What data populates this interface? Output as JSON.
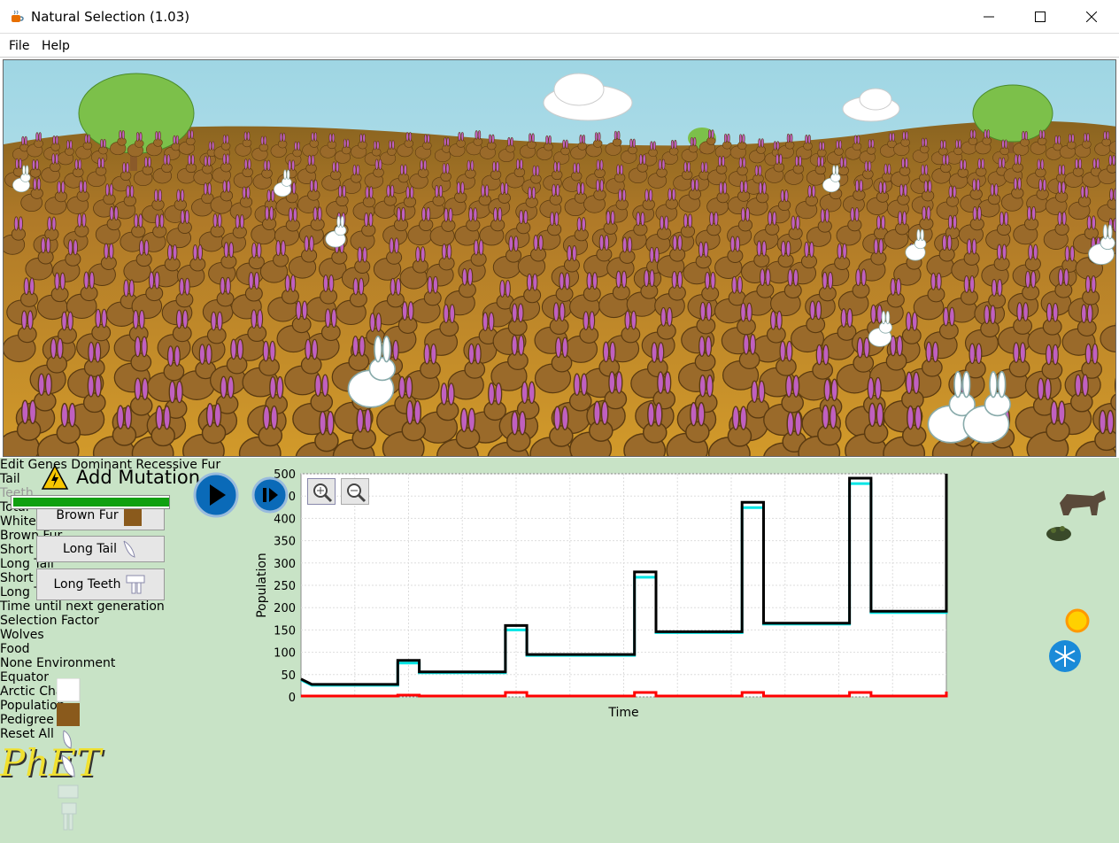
{
  "window": {
    "title": "Natural Selection (1.03)"
  },
  "menu": {
    "file": "File",
    "help": "Help"
  },
  "mutation": {
    "title": "Add Mutation",
    "buttons": [
      {
        "label": "Brown Fur",
        "icon": "brown-fur-icon"
      },
      {
        "label": "Long Tail",
        "icon": "long-tail-icon"
      },
      {
        "label": "Long Teeth",
        "icon": "long-teeth-icon"
      }
    ]
  },
  "genes": {
    "title": "Edit Genes",
    "dominant": "Dominant",
    "recessive": "Recessive",
    "rows": [
      {
        "label": "Fur",
        "enabled": true,
        "row1": "recessive",
        "row2": "dominant"
      },
      {
        "label": "Tail",
        "enabled": true,
        "row1": "recessive",
        "row2": "dominant"
      },
      {
        "label": "Teeth",
        "enabled": false,
        "row1": "recessive",
        "row2": "dominant"
      }
    ]
  },
  "chart_data": {
    "type": "line",
    "xlabel": "Time",
    "ylabel": "Population",
    "ylim": [
      0,
      500
    ],
    "yticks": [
      0,
      50,
      100,
      150,
      200,
      250,
      300,
      350,
      400,
      450,
      500
    ],
    "grid": true,
    "series": [
      {
        "name": "Total",
        "color": "#000000",
        "points": [
          [
            0,
            40
          ],
          [
            1,
            28
          ],
          [
            9,
            28
          ],
          [
            9,
            82
          ],
          [
            11,
            82
          ],
          [
            11,
            56
          ],
          [
            19,
            56
          ],
          [
            19,
            160
          ],
          [
            21,
            160
          ],
          [
            21,
            95
          ],
          [
            31,
            95
          ],
          [
            31,
            280
          ],
          [
            33,
            280
          ],
          [
            33,
            146
          ],
          [
            41,
            146
          ],
          [
            41,
            436
          ],
          [
            43,
            436
          ],
          [
            43,
            165
          ],
          [
            51,
            165
          ],
          [
            51,
            490
          ],
          [
            53,
            490
          ],
          [
            53,
            192
          ],
          [
            60,
            192
          ],
          [
            60,
            500
          ]
        ]
      },
      {
        "name": "White Fur",
        "color": "#ff0000",
        "points": [
          [
            0,
            2
          ],
          [
            9,
            2
          ],
          [
            9,
            4
          ],
          [
            11,
            4
          ],
          [
            11,
            2
          ],
          [
            19,
            2
          ],
          [
            19,
            10
          ],
          [
            21,
            10
          ],
          [
            21,
            2
          ],
          [
            31,
            2
          ],
          [
            31,
            10
          ],
          [
            33,
            10
          ],
          [
            33,
            2
          ],
          [
            41,
            2
          ],
          [
            41,
            10
          ],
          [
            43,
            10
          ],
          [
            43,
            2
          ],
          [
            51,
            2
          ],
          [
            51,
            10
          ],
          [
            53,
            10
          ],
          [
            53,
            2
          ],
          [
            60,
            2
          ],
          [
            60,
            12
          ]
        ]
      },
      {
        "name": "Brown Fur",
        "color": "#00e5e5",
        "points": [
          [
            0,
            38
          ],
          [
            1,
            26
          ],
          [
            9,
            26
          ],
          [
            9,
            76
          ],
          [
            11,
            76
          ],
          [
            11,
            54
          ],
          [
            19,
            54
          ],
          [
            19,
            150
          ],
          [
            21,
            150
          ],
          [
            21,
            93
          ],
          [
            31,
            93
          ],
          [
            31,
            268
          ],
          [
            33,
            268
          ],
          [
            33,
            144
          ],
          [
            41,
            144
          ],
          [
            41,
            424
          ],
          [
            43,
            424
          ],
          [
            43,
            163
          ],
          [
            51,
            163
          ],
          [
            51,
            478
          ],
          [
            53,
            478
          ],
          [
            53,
            189
          ],
          [
            60,
            189
          ],
          [
            60,
            490
          ]
        ]
      },
      {
        "name": "Short Tail",
        "color": "#0000ff",
        "points": []
      },
      {
        "name": "Long Tail",
        "color": "#ffc000",
        "points": []
      },
      {
        "name": "Short Teeth",
        "color": "#a8a800",
        "points": []
      },
      {
        "name": "Long Teeth",
        "color": "#ff00ff",
        "points": []
      }
    ]
  },
  "timer": {
    "label": "Time until next generation",
    "progress": 1.0
  },
  "selection": {
    "title": "Selection Factor",
    "options": [
      {
        "label": "Wolves",
        "selected": true,
        "icon": "wolf-icon"
      },
      {
        "label": "Food",
        "selected": false,
        "icon": "food-icon"
      },
      {
        "label": "None",
        "selected": false
      }
    ]
  },
  "environment": {
    "title": "Environment",
    "options": [
      {
        "label": "Equator",
        "selected": true,
        "icon": "sun-icon"
      },
      {
        "label": "Arctic",
        "selected": false,
        "icon": "snowflake-icon"
      }
    ]
  },
  "chartsel": {
    "title": "Chart",
    "options": [
      {
        "label": "Population",
        "selected": true
      },
      {
        "label": "Pedigree",
        "selected": false
      }
    ]
  },
  "reset_label": "Reset All",
  "logo_text": "PhET",
  "colors": {
    "panel": "#c8e3c6",
    "sky": "#a8dbe8",
    "ground": "#c8922a",
    "hill": "#7a5a1a"
  }
}
